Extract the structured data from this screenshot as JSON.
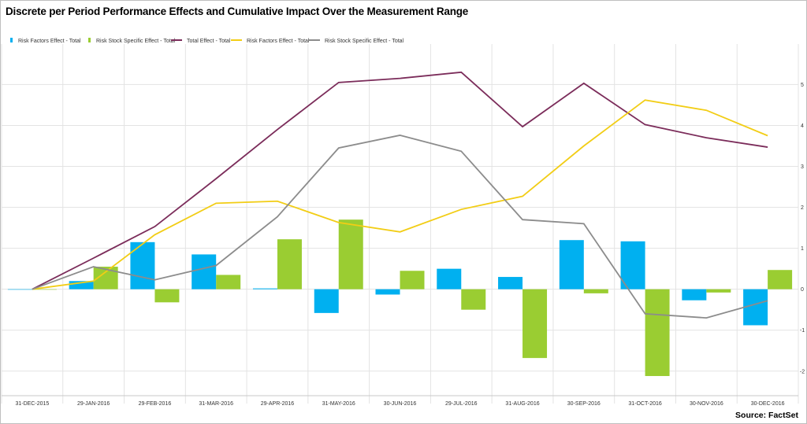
{
  "chart_data": {
    "type": "bar",
    "title": "Discrete per Period Performance Effects and Cumulative Impact Over the Measurement Range",
    "source": "Source: FactSet",
    "categories": [
      "31-DEC-2015",
      "29-JAN-2016",
      "29-FEB-2016",
      "31-MAR-2016",
      "29-APR-2016",
      "31-MAY-2016",
      "30-JUN-2016",
      "29-JUL-2016",
      "31-AUG-2016",
      "30-SEP-2016",
      "31-OCT-2016",
      "30-NOV-2016",
      "30-DEC-2016"
    ],
    "yticks": [
      5,
      4,
      3,
      2,
      1,
      0,
      -1,
      -2
    ],
    "ylim": [
      -2.6,
      5.7
    ],
    "bar_series": [
      {
        "name": "Risk Factors Effect - Total",
        "color": "#00b0f0",
        "values": [
          0.0,
          0.2,
          1.15,
          0.85,
          0.02,
          -0.58,
          -0.13,
          0.5,
          0.3,
          1.2,
          1.17,
          -0.27,
          -0.88
        ]
      },
      {
        "name": "Risk Stock Specific Effect - Total",
        "color": "#9acd32",
        "values": [
          0.0,
          0.55,
          -0.32,
          0.35,
          1.22,
          1.7,
          0.45,
          -0.5,
          -1.68,
          -0.1,
          -2.12,
          -0.08,
          0.47
        ]
      }
    ],
    "line_series": [
      {
        "name": "Total Effect - Total",
        "color": "#7b2c5a",
        "values": [
          0.0,
          0.76,
          1.53,
          2.7,
          3.9,
          5.05,
          5.15,
          5.3,
          3.97,
          5.03,
          4.02,
          3.7,
          3.47
        ]
      },
      {
        "name": "Risk Factors Effect - Total",
        "color": "#f2cd15",
        "values": [
          0.0,
          0.2,
          1.33,
          2.1,
          2.15,
          1.63,
          1.4,
          1.95,
          2.27,
          3.5,
          4.62,
          4.37,
          3.75
        ]
      },
      {
        "name": "Risk Stock Specific Effect - Total",
        "color": "#8c8c8c",
        "values": [
          0.0,
          0.55,
          0.23,
          0.58,
          1.77,
          3.45,
          3.76,
          3.37,
          1.7,
          1.6,
          -0.6,
          -0.7,
          -0.28
        ]
      }
    ],
    "grid": true,
    "legend_position": "top-left"
  }
}
